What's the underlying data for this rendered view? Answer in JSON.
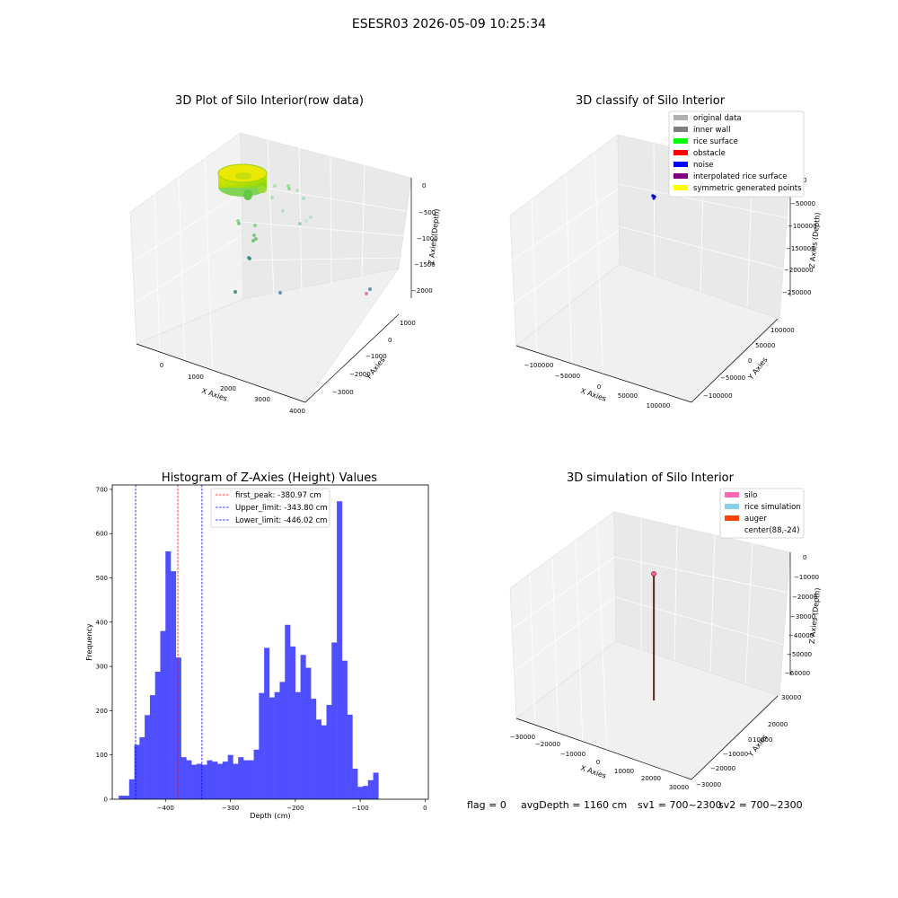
{
  "figure": {
    "suptitle": "ESESR03 2026-05-09 10:25:34"
  },
  "raw_panel": {
    "title": "3D Plot of Silo Interior(row data)",
    "xlabel": "X Axies",
    "ylabel": "Y Axies",
    "zlabel": "Z Axies (Depth)",
    "xticks": [
      "0",
      "1000",
      "2000",
      "3000",
      "4000"
    ],
    "yticks": [
      "1000",
      "0",
      "−1000",
      "−2000",
      "−3000"
    ],
    "zticks": [
      "0",
      "−500",
      "−1000",
      "−1500",
      "−2000"
    ]
  },
  "classify_panel": {
    "title": "3D classify of Silo Interior",
    "xlabel": "X Axies",
    "ylabel": "Y Axies",
    "zlabel": "Z Axies (Depth)",
    "xticks": [
      "−100000",
      "−50000",
      "0",
      "50000",
      "100000"
    ],
    "yticks": [
      "100000",
      "50000",
      "0",
      "−50000",
      "−100000"
    ],
    "zticks": [
      "0",
      "−50000",
      "−100000",
      "−150000",
      "−200000",
      "−250000"
    ],
    "legend": [
      {
        "label": "original data",
        "color": "#b0b0b0"
      },
      {
        "label": "inner wall",
        "color": "#808080"
      },
      {
        "label": "rice surface",
        "color": "#00ff00"
      },
      {
        "label": "obstacle",
        "color": "#ff0000"
      },
      {
        "label": "noise",
        "color": "#0000ff"
      },
      {
        "label": "interpolated rice surface",
        "color": "#800080"
      },
      {
        "label": "symmetric generated points",
        "color": "#ffff00"
      }
    ]
  },
  "histogram_panel": {
    "title": "Histogram of Z-Axies (Height) Values",
    "xlabel": "Depth (cm)",
    "ylabel": "Frequency",
    "xticks": [
      "−400",
      "−300",
      "−200",
      "−100",
      "0"
    ],
    "yticks": [
      "0",
      "100",
      "200",
      "300",
      "400",
      "500",
      "600",
      "700"
    ],
    "legend": [
      {
        "label": "first_peak: -380.97 cm",
        "color": "#ff0000"
      },
      {
        "label": "Upper_limit: -343.80 cm",
        "color": "#0000ff"
      },
      {
        "label": "Lower_limit: -446.02 cm",
        "color": "#0000ff"
      }
    ],
    "bar_color": "#4f4fff"
  },
  "simulation_panel": {
    "title": "3D simulation of Silo Interior",
    "xlabel": "X Axies",
    "ylabel": "Y Axies",
    "zlabel": "Z Axies (Depth)",
    "xticks": [
      "−30000",
      "−20000",
      "−10000",
      "0",
      "10000",
      "20000",
      "30000"
    ],
    "yticks": [
      "30000",
      "20000",
      "10000",
      "0",
      "−10000",
      "−20000",
      "−30000"
    ],
    "zticks": [
      "0",
      "−10000",
      "−20000",
      "−30000",
      "−40000",
      "−50000",
      "−60000"
    ],
    "legend": [
      {
        "label": "silo",
        "color": "#ff69b4"
      },
      {
        "label": "rice simulation",
        "color": "#87ceeb"
      },
      {
        "label": "auger",
        "color": "#ff4500"
      },
      {
        "label": "center(88,-24)",
        "color": "none"
      }
    ]
  },
  "status_line": {
    "flag": "flag = 0",
    "avg_depth": "avgDepth = 1160 cm",
    "sv1": "sv1 = 700~2300",
    "sv2": "sv2 = 700~2300"
  },
  "chart_data": [
    {
      "type": "histogram",
      "title": "Histogram of Z-Axies (Height) Values",
      "xlabel": "Depth (cm)",
      "ylabel": "Frequency",
      "xlim": [
        -482,
        5
      ],
      "ylim": [
        0,
        710
      ],
      "bin_start": -472,
      "bin_width": 8.0,
      "counts": [
        8,
        8,
        45,
        123,
        140,
        190,
        235,
        288,
        380,
        560,
        515,
        320,
        95,
        88,
        78,
        80,
        78,
        88,
        85,
        80,
        85,
        100,
        80,
        95,
        88,
        88,
        112,
        240,
        342,
        230,
        242,
        265,
        394,
        345,
        242,
        326,
        297,
        227,
        180,
        167,
        213,
        354,
        673,
        313,
        191,
        69,
        28,
        30,
        43,
        60
      ],
      "lines": [
        {
          "label": "first_peak: -380.97 cm",
          "x": -380.97,
          "color": "#ff0000"
        },
        {
          "label": "Upper_limit: -343.80 cm",
          "x": -343.8,
          "color": "#0000ff"
        },
        {
          "label": "Lower_limit: -446.02 cm",
          "x": -446.02,
          "color": "#0000ff"
        }
      ]
    },
    {
      "type": "scatter",
      "title": "3D Plot of Silo Interior(row data)",
      "xlabel": "X Axies",
      "ylabel": "Y Axies",
      "zlabel": "Z Axies (Depth)",
      "zlim": [
        -2200,
        100
      ],
      "points": [
        {
          "x": 300,
          "y": -500,
          "z": -1500,
          "color": "#2e8b8b"
        },
        {
          "x": 600,
          "y": -1200,
          "z": -2000,
          "color": "#2e8b57"
        },
        {
          "x": 2000,
          "y": -1500,
          "z": -2000,
          "color": "#4682b4"
        },
        {
          "x": 3800,
          "y": -2200,
          "z": -2000,
          "color": "#db7093"
        },
        {
          "x": 3900,
          "y": -2000,
          "z": -2000,
          "color": "#4682b4"
        }
      ]
    },
    {
      "type": "scatter",
      "title": "3D classify of Silo Interior",
      "points": [
        {
          "label": "noise",
          "color": "#0000ff"
        }
      ]
    }
  ]
}
